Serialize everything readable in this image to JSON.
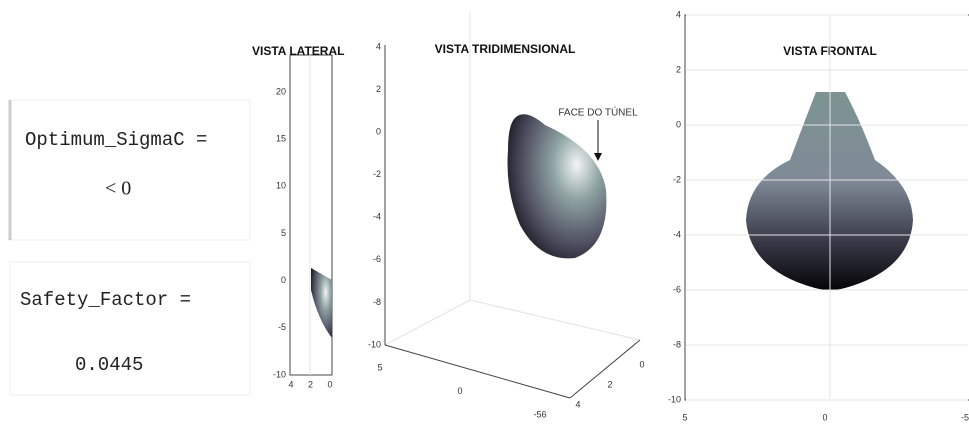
{
  "console": {
    "lines": [
      {
        "label": "Optimum_SigmaC =",
        "value": "< 0"
      },
      {
        "label": "Safety_Factor =",
        "value": "0.0445"
      }
    ]
  },
  "panels": [
    {
      "title": "VISTA LATERAL",
      "yticks": [
        20,
        15,
        10,
        5,
        0,
        -5,
        -10
      ],
      "xticks": [
        4,
        2,
        0
      ]
    },
    {
      "title": "VISTA TRIDIMENSIONAL",
      "annotation": "FACE DO TÚNEL",
      "zticks": [
        4,
        2,
        0,
        -2,
        -4,
        -6,
        -8,
        -10
      ],
      "xticks": [
        5,
        0,
        -56
      ],
      "yticks": [
        4,
        2,
        0
      ]
    },
    {
      "title": "VISTA FRONTAL",
      "yticks": [
        4,
        2,
        0,
        -2,
        -4,
        -6,
        -8,
        -10
      ],
      "xticks": [
        5,
        0,
        -5
      ]
    }
  ]
}
